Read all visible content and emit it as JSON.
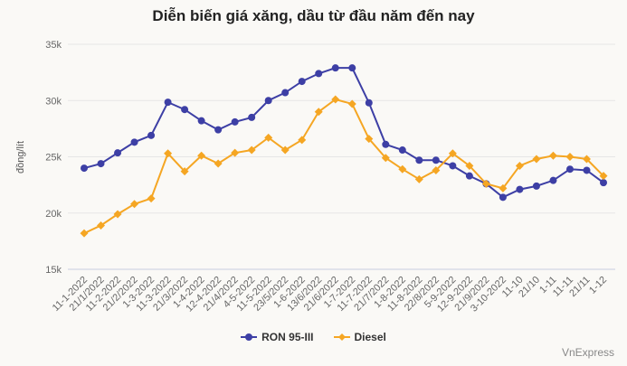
{
  "chart_data": {
    "type": "line",
    "title": "Diễn biến giá xăng, dầu từ đầu năm đến nay",
    "xlabel": "",
    "ylabel": "đồng/lít",
    "ylim": [
      15000,
      35000
    ],
    "yticks": [
      15000,
      20000,
      25000,
      30000,
      35000
    ],
    "ytick_labels": [
      "15k",
      "20k",
      "25k",
      "30k",
      "35k"
    ],
    "grid": true,
    "legend_position": "bottom",
    "categories": [
      "11-1-2022",
      "21/1/2022",
      "11-2-2022",
      "21/2/2022",
      "1-3-2022",
      "11-3-2022",
      "21/3/2022",
      "1-4-2022",
      "12-4-2022",
      "21/4/2022",
      "4-5-2022",
      "11-5-2022",
      "23/5/2022",
      "1-6-2022",
      "13/6/2022",
      "21/6/2022",
      "1-7-2022",
      "11-7-2022",
      "21/7/2022",
      "1-8-2022",
      "11-8-2022",
      "22/8/2022",
      "5-9-2022",
      "12-9-2022",
      "21/9/2022",
      "3-10-2022",
      "11-10",
      "21/10",
      "1-11",
      "11-11",
      "21/11",
      "1-12"
    ],
    "series": [
      {
        "name": "RON 95-III",
        "color": "#3d3fa5",
        "marker": "circle",
        "values": [
          23990,
          24390,
          25350,
          26300,
          26900,
          29850,
          29200,
          28200,
          27400,
          28100,
          28500,
          30000,
          30700,
          31700,
          32400,
          32900,
          32900,
          29800,
          26100,
          25600,
          24700,
          24700,
          24200,
          23300,
          22600,
          21400,
          22100,
          22400,
          22900,
          23900,
          23800,
          22700
        ]
      },
      {
        "name": "Diesel",
        "color": "#f5a623",
        "marker": "diamond",
        "values": [
          18200,
          18900,
          19900,
          20800,
          21300,
          25300,
          23700,
          25100,
          24400,
          25350,
          25600,
          26700,
          25600,
          26500,
          29000,
          30100,
          29700,
          26600,
          24900,
          23900,
          23000,
          23800,
          25300,
          24200,
          22600,
          22200,
          24200,
          24800,
          25100,
          25000,
          24800,
          23300
        ]
      }
    ]
  },
  "credit": "VnExpress"
}
